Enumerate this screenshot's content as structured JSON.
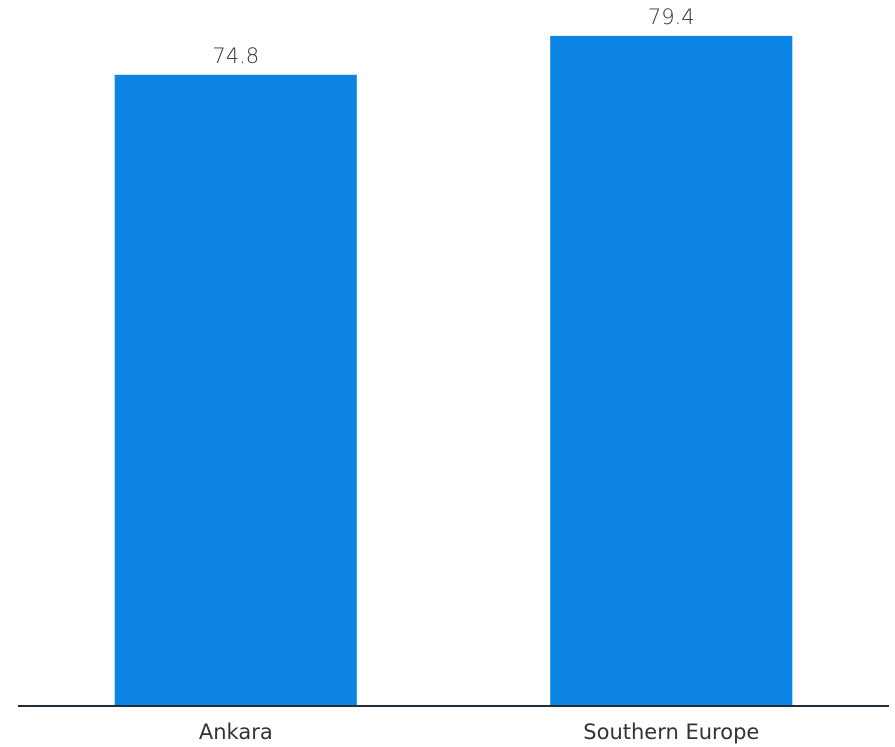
{
  "chart_data": {
    "type": "bar",
    "categories": [
      "Ankara",
      "Southern Europe"
    ],
    "values": [
      74.8,
      79.4
    ],
    "data_labels": [
      "74.8",
      "79.4"
    ],
    "title": "",
    "xlabel": "",
    "ylabel": "",
    "ylim": [
      0,
      82
    ],
    "grid": false,
    "legend": "none",
    "colors": {
      "bar": "#0b84e4",
      "axis": "#1f2d3d",
      "text": "#333333"
    }
  }
}
